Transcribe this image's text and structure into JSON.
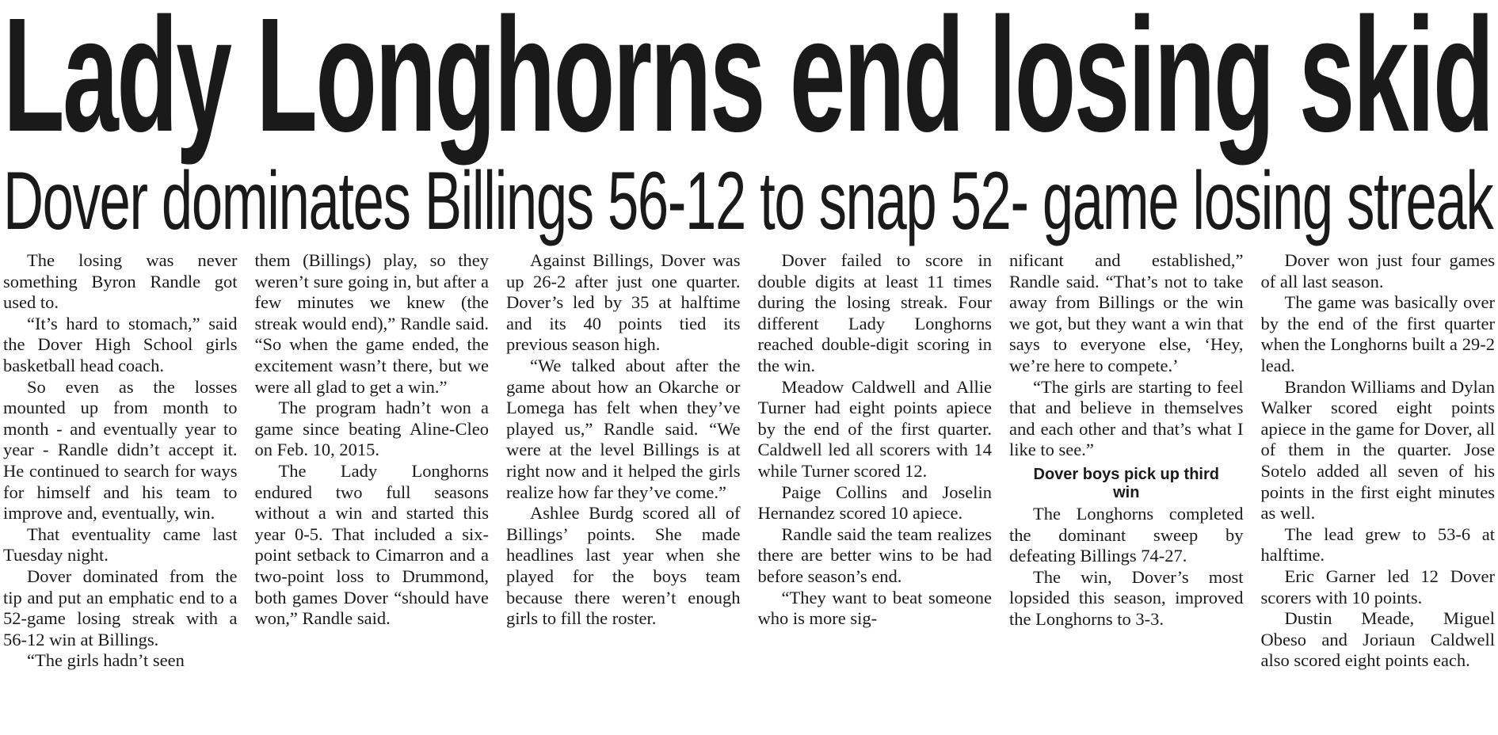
{
  "header": {
    "title": "Lady Longhorns end losing skid",
    "subtitle": "Dover dominates Billings 56-12 to snap 52- game losing streak"
  },
  "columns": [
    [
      {
        "p": "The losing was never something Byron Randle got used to."
      },
      {
        "p": "“It’s hard to stomach,” said the Dover High School girls basketball head coach."
      },
      {
        "p": "So even as the losses mounted up from month to month - and eventually year to year - Randle didn’t accept it. He continued to search for ways for himself and his team to improve and, eventually, win."
      },
      {
        "p": "That eventuality came last Tuesday night."
      },
      {
        "p": "Dover dominated from the tip and put an emphatic end to a 52-game losing streak with a 56-12 win at Billings."
      },
      {
        "p": "“The girls hadn’t seen"
      }
    ],
    [
      {
        "p": "them (Billings) play, so they weren’t sure going in, but after a few minutes we knew (the streak would end),” Randle said. “So when the game ended, the excitement wasn’t there, but we were all glad to get a win.”"
      },
      {
        "p": "The program hadn’t won a game since beating Aline-Cleo on Feb. 10, 2015."
      },
      {
        "p": "The Lady Longhorns endured two full seasons without a win and started this year 0-5. That included a six-point setback to Cimarron and a two-point loss to Drummond, both games Dover “should have won,” Randle said."
      }
    ],
    [
      {
        "p": "Against Billings, Dover was up 26-2 after just one quarter. Dover’s led by 35 at halftime and its 40 points tied its previous season high."
      },
      {
        "p": "“We talked about after the game about how an Okarche or Lomega has felt when they’ve played us,” Randle said. “We were at the level Billings is at right now and it helped the girls realize how far they’ve come.”"
      },
      {
        "p": "Ashlee Burdg scored all of Billings’ points. She made headlines last year when she played for the boys team because there weren’t enough girls to fill the roster."
      }
    ],
    [
      {
        "p": "Dover failed to score in double digits at least 11 times during the losing streak. Four different Lady Longhorns reached double-digit scoring in the win."
      },
      {
        "p": "Meadow Caldwell and Allie Turner had eight points apiece by the end of the first quarter. Caldwell led all scorers with 14 while Turner scored 12."
      },
      {
        "p": "Paige Collins and Joselin Hernandez scored 10 apiece."
      },
      {
        "p": "Randle said the team realizes there are better wins to be had before season’s end."
      },
      {
        "p": "“They want to beat someone who is more sig-"
      }
    ],
    [
      {
        "p": "nificant and established,” Randle said. “That’s not to take away from Billings or the win we got, but they want a win that says to everyone else, ‘Hey, we’re here to compete.’"
      },
      {
        "p": "“The girls are starting to feel that and believe in themselves and each other and that’s what I like to see.”"
      },
      {
        "heading": "Dover boys pick up third win"
      },
      {
        "p": "The Longhorns completed the dominant sweep by defeating Billings 74-27."
      },
      {
        "p": "The win, Dover’s most lopsided this season, improved the Longhorns to 3-3."
      }
    ],
    [
      {
        "p": "Dover won just four games of all last season."
      },
      {
        "p": "The game was basically over by the end of the first quarter when the Longhorns built a 29-2 lead."
      },
      {
        "p": "Brandon Williams and Dylan Walker scored eight points apiece in the game for Dover, all of them in the quarter. Jose Sotelo added all seven of his points in the first eight minutes as well."
      },
      {
        "p": "The lead grew to 53-6 at halftime."
      },
      {
        "p": "Eric Garner led 12 Dover scorers with 10 points."
      },
      {
        "p": "Dustin Meade, Miguel Obeso and Joriaun Caldwell also scored eight points each."
      }
    ]
  ]
}
